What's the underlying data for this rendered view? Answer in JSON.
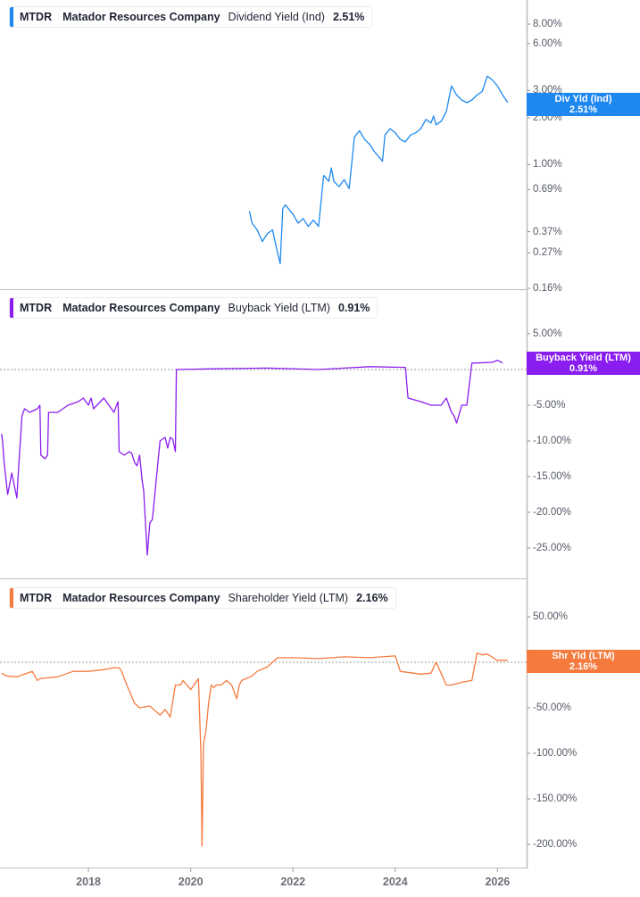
{
  "chart_data": [
    {
      "type": "line",
      "panel": "dividend-yield",
      "title": "MTDR  Matador Resources Company  Dividend Yield (Ind)  2.51%",
      "legend": {
        "ticker": "MTDR",
        "company": "Matador Resources Company",
        "metric": "Dividend Yield (Ind)",
        "value": "2.51%"
      },
      "color": "#1e88f0",
      "y_scale": "log",
      "yticks": [
        "8.00%",
        "6.00%",
        "3.00%",
        "2.00%",
        "1.00%",
        "0.69%",
        "0.37%",
        "0.27%",
        "0.16%"
      ],
      "ytick_values": [
        8,
        6,
        3,
        2,
        1,
        0.69,
        0.37,
        0.27,
        0.16
      ],
      "ylim": [
        0.155,
        11
      ],
      "flag": {
        "line1": "Div Yld (Ind)",
        "line2": "2.51%"
      },
      "x": [
        2021.15,
        2021.2,
        2021.3,
        2021.4,
        2021.5,
        2021.6,
        2021.7,
        2021.75,
        2021.8,
        2021.85,
        2022.0,
        2022.1,
        2022.2,
        2022.3,
        2022.4,
        2022.5,
        2022.6,
        2022.7,
        2022.75,
        2022.8,
        2022.9,
        2023.0,
        2023.1,
        2023.2,
        2023.3,
        2023.4,
        2023.5,
        2023.6,
        2023.7,
        2023.75,
        2023.8,
        2023.9,
        2024.0,
        2024.1,
        2024.2,
        2024.3,
        2024.4,
        2024.5,
        2024.6,
        2024.7,
        2024.75,
        2024.8,
        2024.9,
        2025.0,
        2025.1,
        2025.2,
        2025.3,
        2025.4,
        2025.5,
        2025.6,
        2025.7,
        2025.8,
        2025.9,
        2026.0,
        2026.1,
        2026.2
      ],
      "values": [
        0.5,
        0.42,
        0.38,
        0.32,
        0.36,
        0.38,
        0.27,
        0.23,
        0.52,
        0.55,
        0.48,
        0.42,
        0.45,
        0.4,
        0.44,
        0.4,
        0.85,
        0.78,
        0.95,
        0.78,
        0.72,
        0.8,
        0.7,
        1.5,
        1.65,
        1.45,
        1.35,
        1.2,
        1.1,
        1.05,
        1.55,
        1.7,
        1.6,
        1.45,
        1.4,
        1.55,
        1.6,
        1.7,
        1.95,
        1.85,
        2.05,
        1.8,
        1.9,
        2.2,
        3.2,
        2.8,
        2.6,
        2.5,
        2.6,
        2.8,
        2.95,
        3.7,
        3.5,
        3.2,
        2.8,
        2.51
      ]
    },
    {
      "type": "line",
      "panel": "buyback-yield",
      "title": "MTDR  Matador Resources Company  Buyback Yield (LTM)  0.91%",
      "legend": {
        "ticker": "MTDR",
        "company": "Matador Resources Company",
        "metric": "Buyback Yield (LTM)",
        "value": "0.91%"
      },
      "color": "#8a1ef0",
      "y_scale": "linear",
      "yticks": [
        "5.00%",
        "0.00%",
        "-5.00%",
        "-10.00%",
        "-15.00%",
        "-20.00%",
        "-25.00%"
      ],
      "ytick_values": [
        5,
        0,
        -5,
        -10,
        -15,
        -20,
        -25
      ],
      "ylim": [
        -29,
        11
      ],
      "flag": {
        "line1": "Buyback Yield (LTM)",
        "line2": "0.91%"
      },
      "x": [
        2016.3,
        2016.32,
        2016.35,
        2016.42,
        2016.5,
        2016.6,
        2016.62,
        2016.7,
        2016.75,
        2016.85,
        2017.0,
        2017.05,
        2017.07,
        2017.15,
        2017.2,
        2017.22,
        2017.4,
        2017.6,
        2017.8,
        2017.9,
        2018.0,
        2018.05,
        2018.1,
        2018.3,
        2018.5,
        2018.55,
        2018.58,
        2018.6,
        2018.7,
        2018.8,
        2018.85,
        2018.9,
        2018.95,
        2019.0,
        2019.05,
        2019.08,
        2019.1,
        2019.15,
        2019.2,
        2019.25,
        2019.4,
        2019.5,
        2019.55,
        2019.6,
        2019.65,
        2019.7,
        2019.72,
        2020.5,
        2021.5,
        2022.5,
        2023.5,
        2024.2,
        2024.25,
        2024.5,
        2024.7,
        2024.9,
        2025.0,
        2025.1,
        2025.15,
        2025.2,
        2025.3,
        2025.4,
        2025.5,
        2025.9,
        2026.0,
        2026.1
      ],
      "values": [
        -9.0,
        -10.0,
        -13.0,
        -17.5,
        -14.5,
        -18.0,
        -15.5,
        -6.5,
        -5.5,
        -6.0,
        -5.5,
        -5.0,
        -12.0,
        -12.5,
        -12.0,
        -6.0,
        -6.0,
        -5.0,
        -4.5,
        -4.0,
        -5.0,
        -4.0,
        -5.5,
        -4.0,
        -6.0,
        -5.0,
        -4.5,
        -11.5,
        -12.0,
        -11.5,
        -11.8,
        -13.0,
        -13.5,
        -12.0,
        -15.5,
        -17.0,
        -19.5,
        -26.0,
        -21.5,
        -21.0,
        -10.0,
        -9.5,
        -11.0,
        -9.5,
        -9.8,
        -11.5,
        0.0,
        0.1,
        0.2,
        0.0,
        0.4,
        0.3,
        -4.0,
        -4.5,
        -5.0,
        -5.0,
        -4.0,
        -6.0,
        -6.5,
        -7.5,
        -5.0,
        -5.0,
        0.9,
        1.0,
        1.3,
        0.91
      ]
    },
    {
      "type": "line",
      "panel": "shareholder-yield",
      "title": "MTDR  Matador Resources Company  Shareholder Yield (LTM)  2.16%",
      "legend": {
        "ticker": "MTDR",
        "company": "Matador Resources Company",
        "metric": "Shareholder Yield (LTM)",
        "value": "2.16%"
      },
      "color": "#f47a3e",
      "y_scale": "linear",
      "yticks": [
        "50.00%",
        "0.00%",
        "-50.00%",
        "-100.00%",
        "-150.00%",
        "-200.00%"
      ],
      "ytick_values": [
        50,
        0,
        -50,
        -100,
        -150,
        -200
      ],
      "ylim": [
        -224,
        92
      ],
      "flag": {
        "line1": "Shr Yld (LTM)",
        "line2": "2.16%"
      },
      "x": [
        2016.3,
        2016.4,
        2016.6,
        2016.9,
        2017.0,
        2017.05,
        2017.4,
        2017.6,
        2017.7,
        2017.9,
        2018.0,
        2018.3,
        2018.5,
        2018.6,
        2018.65,
        2018.75,
        2018.9,
        2019.0,
        2019.2,
        2019.4,
        2019.5,
        2019.6,
        2019.7,
        2019.8,
        2019.85,
        2020.0,
        2020.15,
        2020.2,
        2020.22,
        2020.25,
        2020.3,
        2020.35,
        2020.4,
        2020.45,
        2020.5,
        2020.6,
        2020.7,
        2020.8,
        2020.9,
        2020.95,
        2021.0,
        2021.2,
        2021.3,
        2021.5,
        2021.6,
        2021.7,
        2022.0,
        2022.5,
        2023.0,
        2023.5,
        2024.0,
        2024.1,
        2024.5,
        2024.7,
        2024.8,
        2025.0,
        2025.1,
        2025.3,
        2025.5,
        2025.6,
        2025.7,
        2025.8,
        2026.0,
        2026.05,
        2026.2
      ],
      "values": [
        -12.0,
        -15.0,
        -16.0,
        -10.0,
        -20.0,
        -18.0,
        -16.0,
        -12.0,
        -10.0,
        -10.0,
        -10.0,
        -8.0,
        -6.0,
        -6.0,
        -10.0,
        -25.0,
        -45.0,
        -50.0,
        -48.0,
        -58.0,
        -52.0,
        -60.0,
        -25.0,
        -25.0,
        -20.0,
        -30.0,
        -18.0,
        -100.0,
        -202.0,
        -90.0,
        -75.0,
        -45.0,
        -25.0,
        -28.0,
        -25.0,
        -25.0,
        -20.0,
        -25.0,
        -40.0,
        -25.0,
        -20.0,
        -15.0,
        -10.0,
        -5.0,
        0.0,
        5.0,
        5.0,
        4.0,
        6.0,
        5.0,
        7.0,
        -10.0,
        -13.0,
        -12.0,
        0.0,
        -25.0,
        -25.0,
        -22.0,
        -20.0,
        10.0,
        8.0,
        9.0,
        2.0,
        2.16,
        2.16
      ]
    }
  ],
  "x_axis": {
    "ticks": [
      "2018",
      "2020",
      "2022",
      "2024",
      "2026"
    ],
    "tick_values": [
      2018,
      2020,
      2022,
      2024,
      2026
    ],
    "range": [
      2016.27,
      2026.57
    ]
  },
  "panels": {
    "dividend": {
      "ticker": "MTDR",
      "company": "Matador Resources Company",
      "metric": "Dividend Yield (Ind)",
      "value": "2.51%",
      "flag1": "Div Yld (Ind)",
      "flag2": "2.51%"
    },
    "buyback": {
      "ticker": "MTDR",
      "company": "Matador Resources Company",
      "metric": "Buyback Yield (LTM)",
      "value": "0.91%",
      "flag1": "Buyback Yield (LTM)",
      "flag2": "0.91%"
    },
    "shareholder": {
      "ticker": "MTDR",
      "company": "Matador Resources Company",
      "metric": "Shareholder Yield (LTM)",
      "value": "2.16%",
      "flag1": "Shr Yld (LTM)",
      "flag2": "2.16%"
    }
  }
}
